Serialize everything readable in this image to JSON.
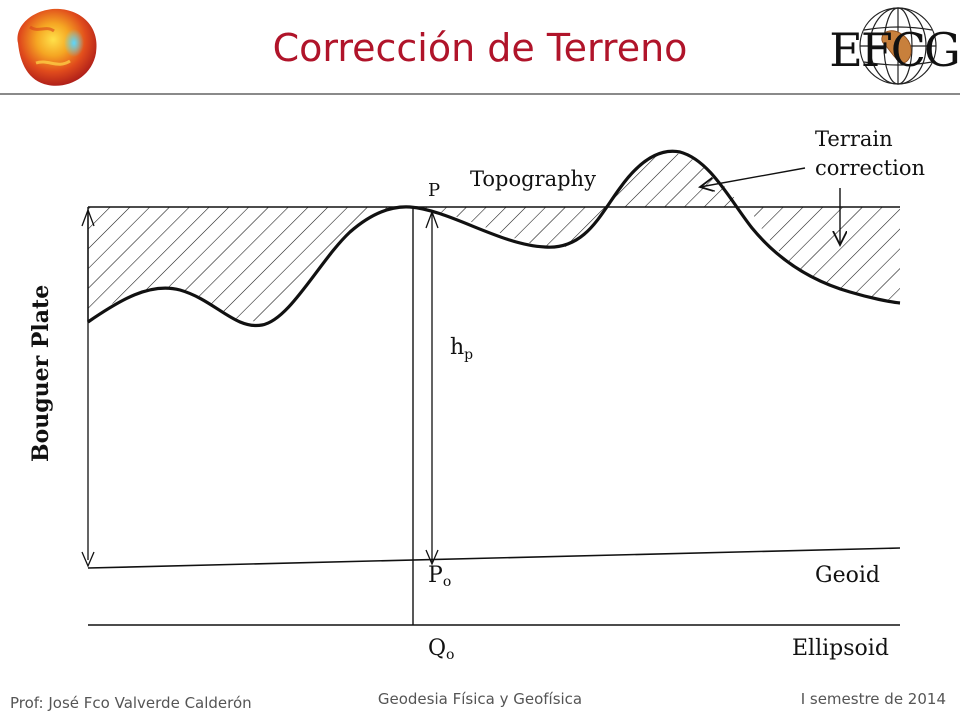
{
  "slide": {
    "title": "Corrección de Terreno",
    "logo_text": "EFCG"
  },
  "diagram": {
    "labels": {
      "topography": "Topography",
      "terrain_correction_line1": "Terrain",
      "terrain_correction_line2": "correction",
      "point_p": "P",
      "height": "h",
      "height_sub": "p",
      "point_po": "P",
      "point_po_sub": "o",
      "geoid": "Geoid",
      "point_qo": "Q",
      "point_qo_sub": "o",
      "ellipsoid": "Ellipsoid",
      "bouguer_plate": "Bouguer Plate"
    }
  },
  "footer": {
    "author": "Prof: José Fco Valverde Calderón",
    "course": "Geodesia Física y Geofísica",
    "semester": "I semestre de 2014"
  },
  "colors": {
    "title": "#b0142a",
    "logo_map": "#c8803c"
  }
}
